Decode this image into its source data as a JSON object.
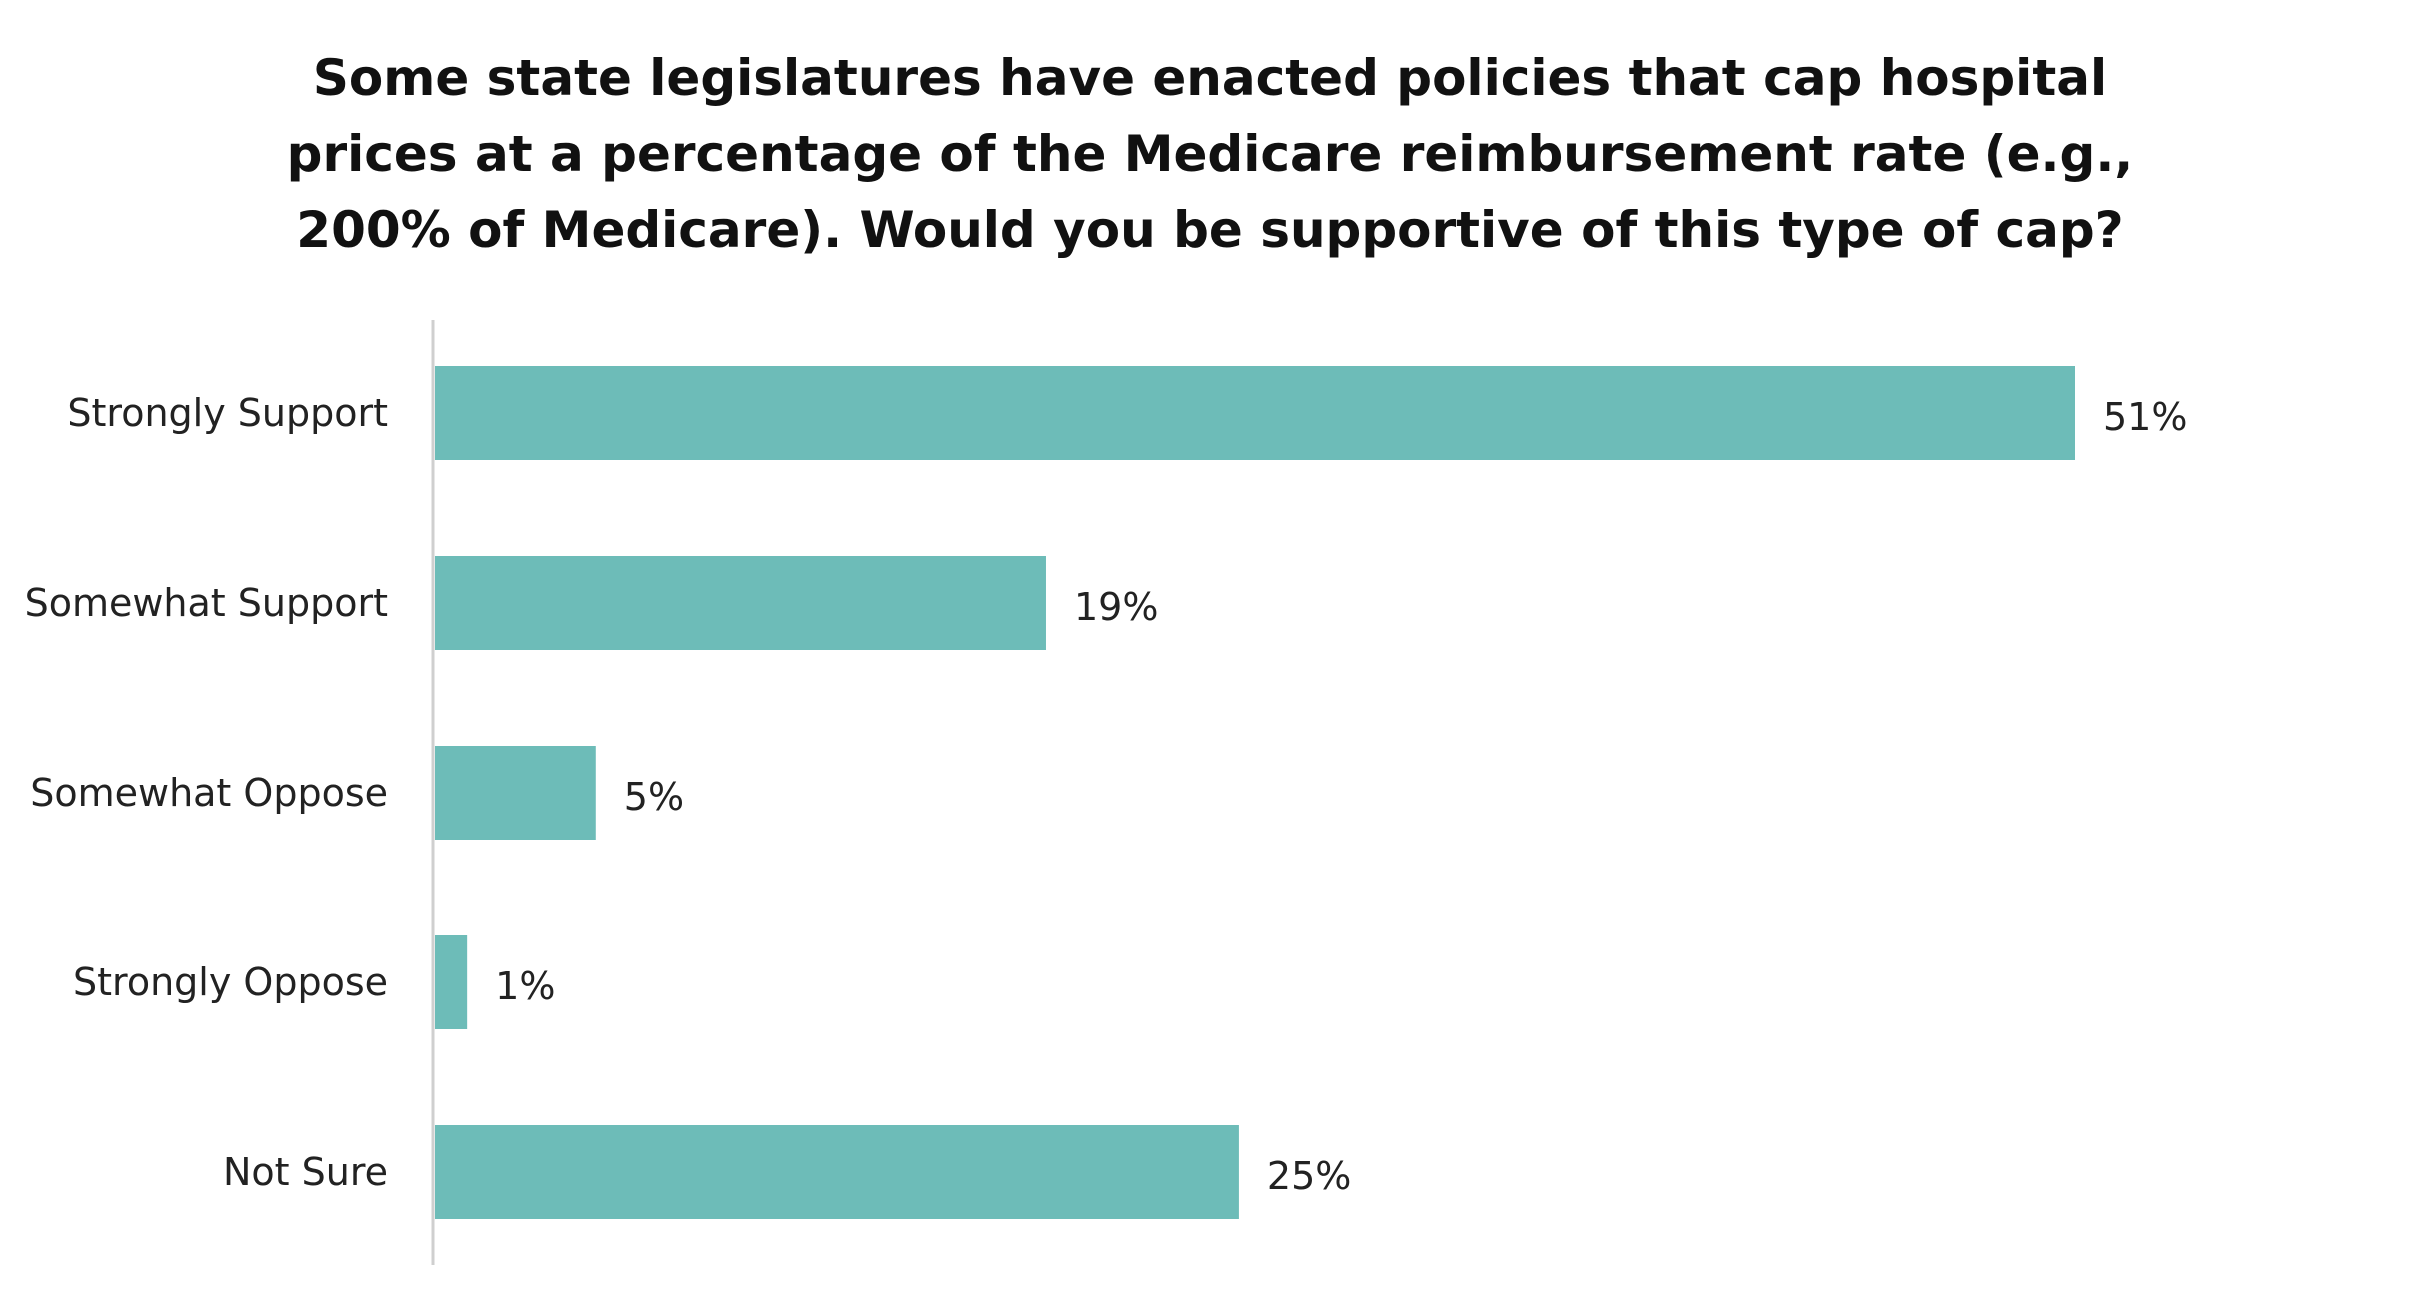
{
  "chart_data": {
    "type": "bar",
    "orientation": "horizontal",
    "title": "Some state legislatures have enacted policies that cap hospital prices at a percentage of the Medicare reimbursement rate (e.g., 200% of Medicare). Would you be supportive of this type of cap?",
    "categories": [
      "Strongly Support",
      "Somewhat Support",
      "Somewhat Oppose",
      "Strongly Oppose",
      "Not Sure"
    ],
    "values": [
      51,
      19,
      5,
      1,
      25
    ],
    "value_labels": [
      "51%",
      "19%",
      "5%",
      "1%",
      "25%"
    ],
    "unit": "%",
    "xlabel": "",
    "ylabel": "",
    "xlim": [
      0,
      51
    ],
    "grid": false,
    "bar_color": "#6dbcb8",
    "axis_color": "#cfcfcf"
  }
}
